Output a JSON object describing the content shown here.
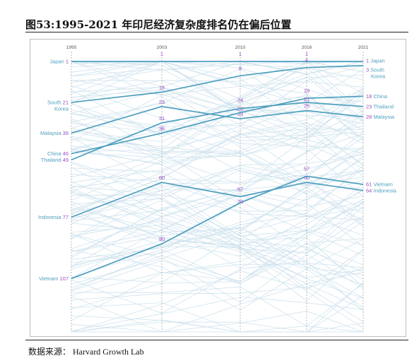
{
  "title": "图53:1995-2021 年印尼经济复杂度排名仍在偏后位置",
  "source": "数据来源： Harvard Growth Lab",
  "colors": {
    "highlight": "#4e9fbf",
    "background_lines": "#cfe3ee",
    "rank_number": "#9b4fc3",
    "country_label": "#4e9fbf",
    "year_label": "#555555"
  },
  "chart_data": {
    "type": "line",
    "x": [
      "1995",
      "2003",
      "2010",
      "2016",
      "2021"
    ],
    "ylim": [
      1,
      133
    ],
    "y_inverted": true,
    "grid": false,
    "legend": "none",
    "series": [
      {
        "name": "Japan",
        "values": [
          1,
          1,
          1,
          1,
          1
        ],
        "end_label": "Japan"
      },
      {
        "name": "South Korea",
        "values": [
          21,
          16,
          8,
          4,
          3
        ],
        "start_label": "South\nKorea",
        "end_label": "South\nKorea"
      },
      {
        "name": "Malaysia",
        "values": [
          36,
          23,
          29,
          25,
          28
        ],
        "end_label": "Malaysia"
      },
      {
        "name": "China",
        "values": [
          46,
          36,
          26,
          19,
          18
        ],
        "end_label": "China"
      },
      {
        "name": "Thailand",
        "values": [
          49,
          31,
          24,
          21,
          23
        ],
        "end_label": "Thailand"
      },
      {
        "name": "Indonesia",
        "values": [
          77,
          60,
          67,
          60,
          64
        ],
        "end_label": "Indonesia"
      },
      {
        "name": "Vietnam",
        "values": [
          107,
          90,
          70,
          57,
          61
        ],
        "end_label": "Vietnam"
      }
    ]
  }
}
